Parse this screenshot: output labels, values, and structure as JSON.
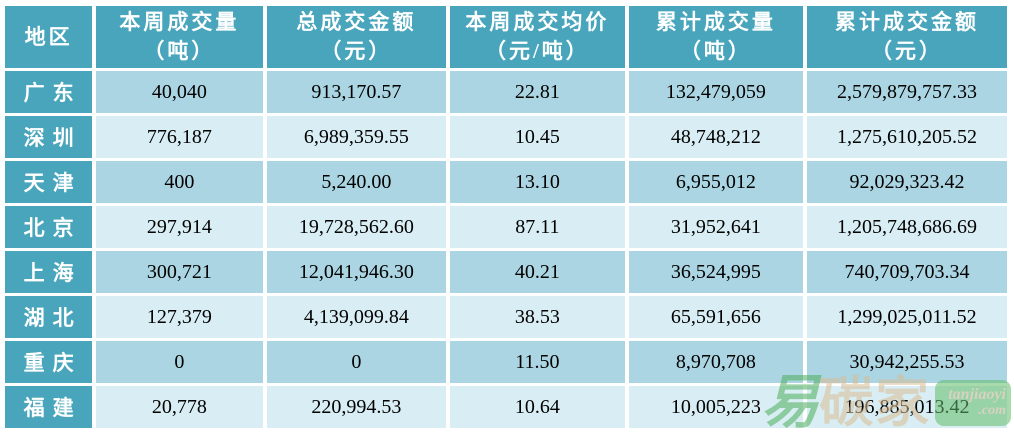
{
  "header": {
    "cells": [
      {
        "line1": "地区"
      },
      {
        "line1": "本周成交量",
        "line2": "（吨）"
      },
      {
        "line1": "总成交金额",
        "line2": "（元）"
      },
      {
        "line1": "本周成交均价",
        "line2": "（元/吨）"
      },
      {
        "line1": "累计成交量",
        "line2": "（吨）"
      },
      {
        "line1": "累计成交金额",
        "line2": "（元）"
      }
    ]
  },
  "rows": [
    {
      "region": "广东",
      "values": [
        "40,040",
        "913,170.57",
        "22.81",
        "132,479,059",
        "2,579,879,757.33"
      ]
    },
    {
      "region": "深圳",
      "values": [
        "776,187",
        "6,989,359.55",
        "10.45",
        "48,748,212",
        "1,275,610,205.52"
      ]
    },
    {
      "region": "天津",
      "values": [
        "400",
        "5,240.00",
        "13.10",
        "6,955,012",
        "92,029,323.42"
      ]
    },
    {
      "region": "北京",
      "values": [
        "297,914",
        "19,728,562.60",
        "87.11",
        "31,952,641",
        "1,205,748,686.69"
      ]
    },
    {
      "region": "上海",
      "values": [
        "300,721",
        "12,041,946.30",
        "40.21",
        "36,524,995",
        "740,709,703.34"
      ]
    },
    {
      "region": "湖北",
      "values": [
        "127,379",
        "4,139,099.84",
        "38.53",
        "65,591,656",
        "1,299,025,011.52"
      ]
    },
    {
      "region": "重庆",
      "values": [
        "0",
        "0",
        "11.50",
        "8,970,708",
        "30,942,255.53"
      ]
    },
    {
      "region": "福建",
      "values": [
        "20,778",
        "220,994.53",
        "10.64",
        "10,005,223",
        "196,885,013.42"
      ]
    }
  ],
  "watermark": {
    "char_yi": "易",
    "char_tan": "碳",
    "char_jia": "家",
    "badge_line1": "tanjiaoyi",
    "badge_line2": ".com"
  },
  "colors": {
    "header_bg": "#48A5BC",
    "row_medium": "#ABD5E2",
    "row_light": "#D9EEF4",
    "grid": "#FFFFFF",
    "header_text": "#FFFFFF",
    "cell_text": "#000000",
    "watermark_green": "#62BD6A",
    "watermark_tan": "#D8BC95"
  }
}
